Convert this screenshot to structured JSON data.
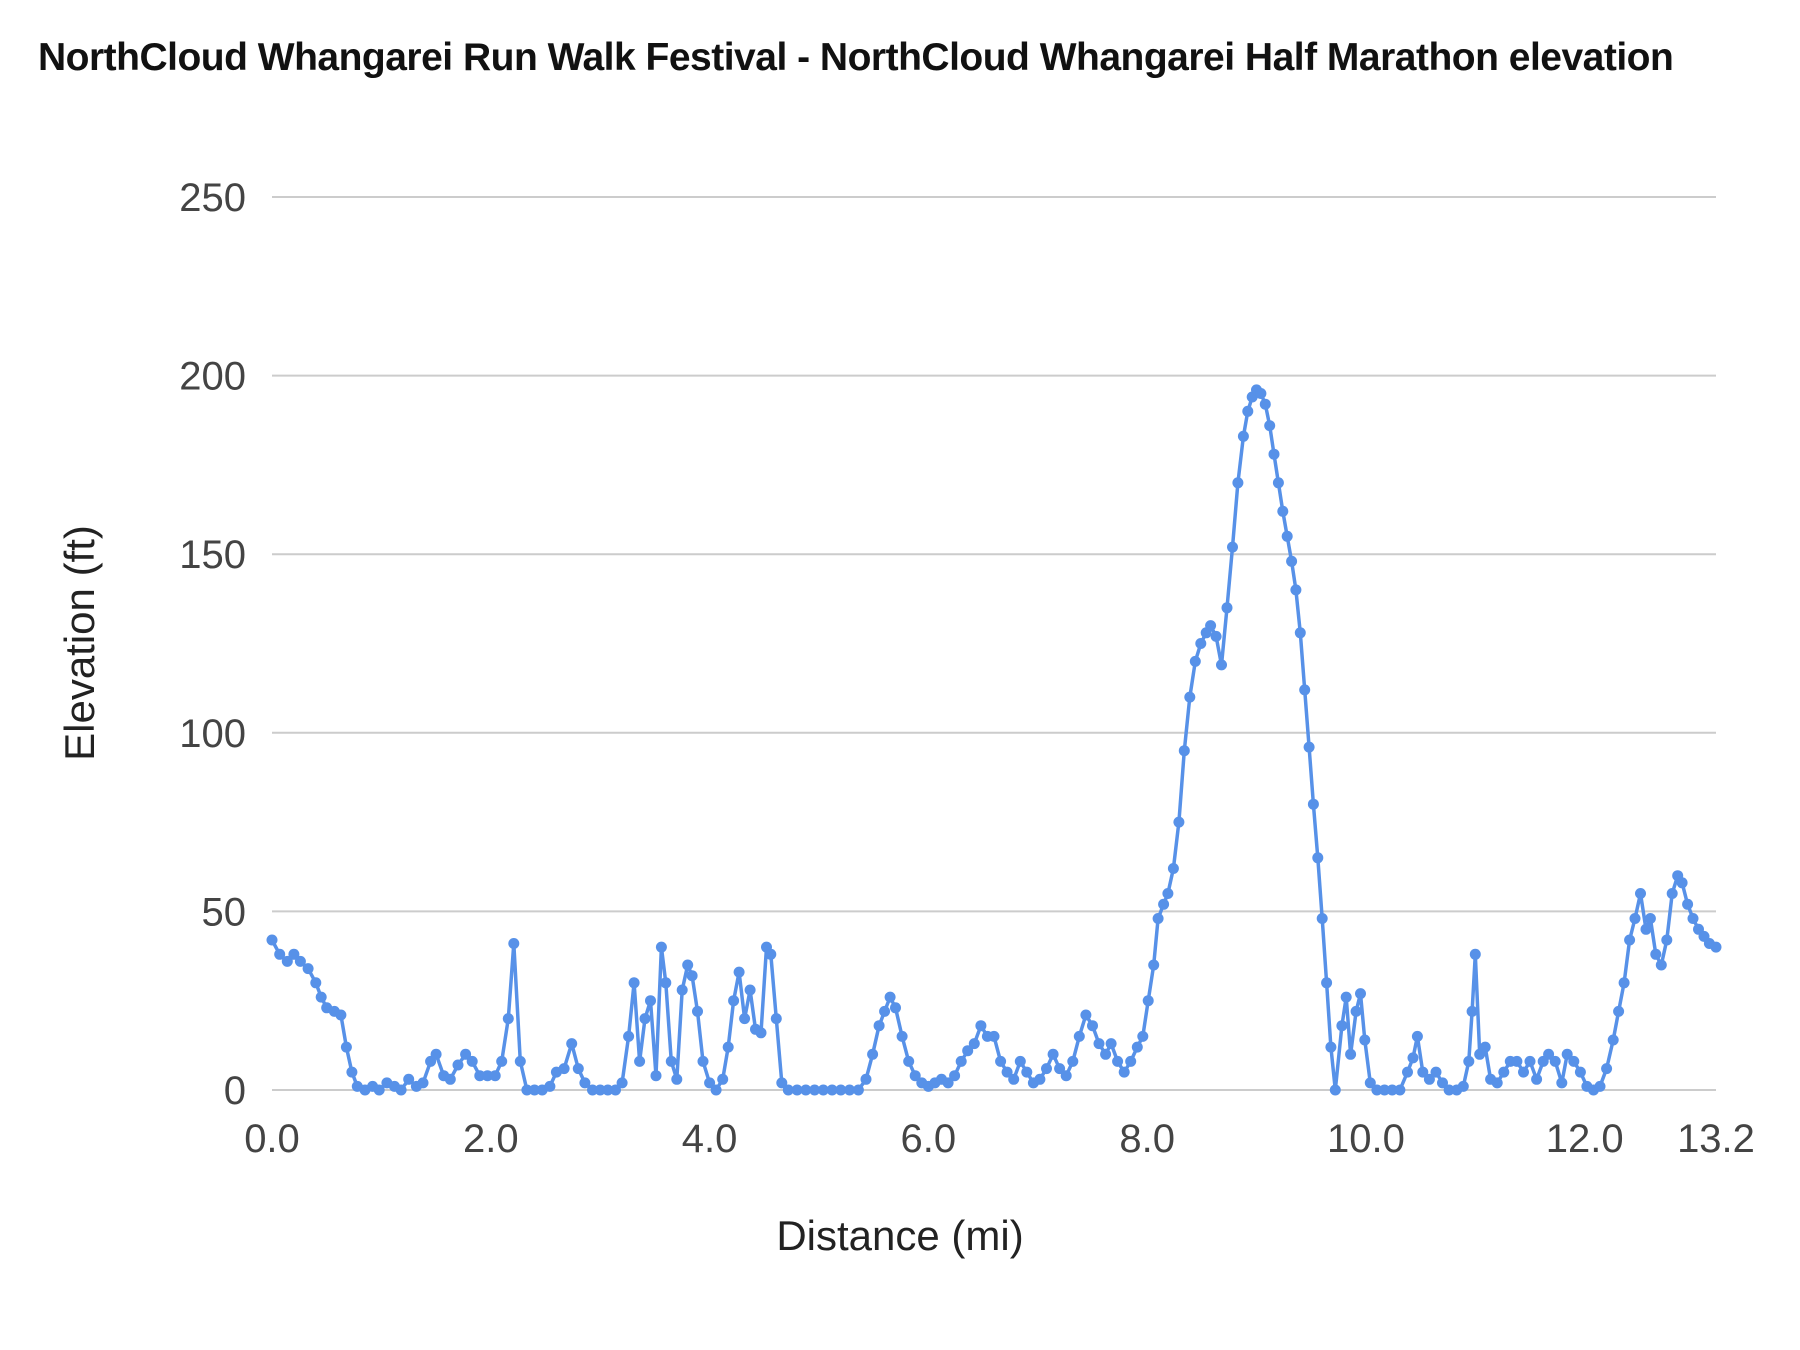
{
  "chart_data": {
    "type": "line",
    "title": "NorthCloud Whangarei Run Walk Festival - NorthCloud Whangarei Half Marathon elevation",
    "xlabel": "Distance (mi)",
    "ylabel": "Elevation (ft)",
    "xlim": [
      0,
      13.2
    ],
    "ylim": [
      0,
      250
    ],
    "grid": true,
    "legend_position": "none",
    "x_ticks": [
      {
        "value": 0,
        "label": "0.0"
      },
      {
        "value": 2,
        "label": "2.0"
      },
      {
        "value": 4,
        "label": "4.0"
      },
      {
        "value": 6,
        "label": "6.0"
      },
      {
        "value": 8,
        "label": "8.0"
      },
      {
        "value": 10,
        "label": "10.0"
      },
      {
        "value": 12,
        "label": "12.0"
      },
      {
        "value": 13.2,
        "label": "13.2"
      }
    ],
    "y_ticks": [
      {
        "value": 0,
        "label": "0"
      },
      {
        "value": 50,
        "label": "50"
      },
      {
        "value": 100,
        "label": "100"
      },
      {
        "value": 150,
        "label": "150"
      },
      {
        "value": 200,
        "label": "200"
      },
      {
        "value": 250,
        "label": "250"
      }
    ],
    "series": [
      {
        "name": "elevation",
        "color": "#5791e8",
        "points": [
          [
            0.0,
            42
          ],
          [
            0.07,
            38
          ],
          [
            0.14,
            36
          ],
          [
            0.2,
            38
          ],
          [
            0.26,
            36
          ],
          [
            0.33,
            34
          ],
          [
            0.4,
            30
          ],
          [
            0.45,
            26
          ],
          [
            0.5,
            23
          ],
          [
            0.57,
            22
          ],
          [
            0.63,
            21
          ],
          [
            0.68,
            12
          ],
          [
            0.73,
            5
          ],
          [
            0.78,
            1
          ],
          [
            0.85,
            0
          ],
          [
            0.92,
            1
          ],
          [
            0.98,
            0
          ],
          [
            1.05,
            2
          ],
          [
            1.12,
            1
          ],
          [
            1.18,
            0
          ],
          [
            1.25,
            3
          ],
          [
            1.32,
            1
          ],
          [
            1.38,
            2
          ],
          [
            1.45,
            8
          ],
          [
            1.5,
            10
          ],
          [
            1.57,
            4
          ],
          [
            1.63,
            3
          ],
          [
            1.7,
            7
          ],
          [
            1.77,
            10
          ],
          [
            1.83,
            8
          ],
          [
            1.9,
            4
          ],
          [
            1.97,
            4
          ],
          [
            2.04,
            4
          ],
          [
            2.1,
            8
          ],
          [
            2.16,
            20
          ],
          [
            2.21,
            41
          ],
          [
            2.27,
            8
          ],
          [
            2.33,
            0
          ],
          [
            2.4,
            0
          ],
          [
            2.47,
            0
          ],
          [
            2.54,
            1
          ],
          [
            2.6,
            5
          ],
          [
            2.67,
            6
          ],
          [
            2.74,
            13
          ],
          [
            2.8,
            6
          ],
          [
            2.86,
            2
          ],
          [
            2.93,
            0
          ],
          [
            3.0,
            0
          ],
          [
            3.07,
            0
          ],
          [
            3.14,
            0
          ],
          [
            3.2,
            2
          ],
          [
            3.26,
            15
          ],
          [
            3.31,
            30
          ],
          [
            3.36,
            8
          ],
          [
            3.41,
            20
          ],
          [
            3.46,
            25
          ],
          [
            3.51,
            4
          ],
          [
            3.56,
            40
          ],
          [
            3.6,
            30
          ],
          [
            3.65,
            8
          ],
          [
            3.7,
            3
          ],
          [
            3.75,
            28
          ],
          [
            3.8,
            35
          ],
          [
            3.84,
            32
          ],
          [
            3.89,
            22
          ],
          [
            3.94,
            8
          ],
          [
            4.0,
            2
          ],
          [
            4.06,
            0
          ],
          [
            4.12,
            3
          ],
          [
            4.17,
            12
          ],
          [
            4.22,
            25
          ],
          [
            4.27,
            33
          ],
          [
            4.32,
            20
          ],
          [
            4.37,
            28
          ],
          [
            4.42,
            17
          ],
          [
            4.47,
            16
          ],
          [
            4.52,
            40
          ],
          [
            4.56,
            38
          ],
          [
            4.61,
            20
          ],
          [
            4.66,
            2
          ],
          [
            4.72,
            0
          ],
          [
            4.8,
            0
          ],
          [
            4.88,
            0
          ],
          [
            4.96,
            0
          ],
          [
            5.04,
            0
          ],
          [
            5.12,
            0
          ],
          [
            5.2,
            0
          ],
          [
            5.28,
            0
          ],
          [
            5.36,
            0
          ],
          [
            5.43,
            3
          ],
          [
            5.49,
            10
          ],
          [
            5.55,
            18
          ],
          [
            5.6,
            22
          ],
          [
            5.65,
            26
          ],
          [
            5.7,
            23
          ],
          [
            5.76,
            15
          ],
          [
            5.82,
            8
          ],
          [
            5.88,
            4
          ],
          [
            5.94,
            2
          ],
          [
            6.0,
            1
          ],
          [
            6.06,
            2
          ],
          [
            6.12,
            3
          ],
          [
            6.18,
            2
          ],
          [
            6.24,
            4
          ],
          [
            6.3,
            8
          ],
          [
            6.36,
            11
          ],
          [
            6.42,
            13
          ],
          [
            6.48,
            18
          ],
          [
            6.54,
            15
          ],
          [
            6.6,
            15
          ],
          [
            6.66,
            8
          ],
          [
            6.72,
            5
          ],
          [
            6.78,
            3
          ],
          [
            6.84,
            8
          ],
          [
            6.9,
            5
          ],
          [
            6.96,
            2
          ],
          [
            7.02,
            3
          ],
          [
            7.08,
            6
          ],
          [
            7.14,
            10
          ],
          [
            7.2,
            6
          ],
          [
            7.26,
            4
          ],
          [
            7.32,
            8
          ],
          [
            7.38,
            15
          ],
          [
            7.44,
            21
          ],
          [
            7.5,
            18
          ],
          [
            7.56,
            13
          ],
          [
            7.62,
            10
          ],
          [
            7.67,
            13
          ],
          [
            7.73,
            8
          ],
          [
            7.79,
            5
          ],
          [
            7.85,
            8
          ],
          [
            7.91,
            12
          ],
          [
            7.96,
            15
          ],
          [
            8.01,
            25
          ],
          [
            8.06,
            35
          ],
          [
            8.1,
            48
          ],
          [
            8.15,
            52
          ],
          [
            8.19,
            55
          ],
          [
            8.24,
            62
          ],
          [
            8.29,
            75
          ],
          [
            8.34,
            95
          ],
          [
            8.39,
            110
          ],
          [
            8.44,
            120
          ],
          [
            8.49,
            125
          ],
          [
            8.54,
            128
          ],
          [
            8.58,
            130
          ],
          [
            8.63,
            127
          ],
          [
            8.68,
            119
          ],
          [
            8.73,
            135
          ],
          [
            8.78,
            152
          ],
          [
            8.83,
            170
          ],
          [
            8.88,
            183
          ],
          [
            8.92,
            190
          ],
          [
            8.96,
            194
          ],
          [
            9.0,
            196
          ],
          [
            9.04,
            195
          ],
          [
            9.08,
            192
          ],
          [
            9.12,
            186
          ],
          [
            9.16,
            178
          ],
          [
            9.2,
            170
          ],
          [
            9.24,
            162
          ],
          [
            9.28,
            155
          ],
          [
            9.32,
            148
          ],
          [
            9.36,
            140
          ],
          [
            9.4,
            128
          ],
          [
            9.44,
            112
          ],
          [
            9.48,
            96
          ],
          [
            9.52,
            80
          ],
          [
            9.56,
            65
          ],
          [
            9.6,
            48
          ],
          [
            9.64,
            30
          ],
          [
            9.68,
            12
          ],
          [
            9.72,
            0
          ],
          [
            9.78,
            18
          ],
          [
            9.82,
            26
          ],
          [
            9.86,
            10
          ],
          [
            9.91,
            22
          ],
          [
            9.95,
            27
          ],
          [
            9.99,
            14
          ],
          [
            10.04,
            2
          ],
          [
            10.1,
            0
          ],
          [
            10.17,
            0
          ],
          [
            10.24,
            0
          ],
          [
            10.31,
            0
          ],
          [
            10.38,
            5
          ],
          [
            10.43,
            9
          ],
          [
            10.47,
            15
          ],
          [
            10.52,
            5
          ],
          [
            10.58,
            3
          ],
          [
            10.64,
            5
          ],
          [
            10.7,
            2
          ],
          [
            10.76,
            0
          ],
          [
            10.83,
            0
          ],
          [
            10.89,
            1
          ],
          [
            10.94,
            8
          ],
          [
            10.97,
            22
          ],
          [
            11.0,
            38
          ],
          [
            11.04,
            10
          ],
          [
            11.09,
            12
          ],
          [
            11.14,
            3
          ],
          [
            11.2,
            2
          ],
          [
            11.26,
            5
          ],
          [
            11.32,
            8
          ],
          [
            11.38,
            8
          ],
          [
            11.44,
            5
          ],
          [
            11.5,
            8
          ],
          [
            11.56,
            3
          ],
          [
            11.62,
            8
          ],
          [
            11.67,
            10
          ],
          [
            11.73,
            8
          ],
          [
            11.79,
            2
          ],
          [
            11.84,
            10
          ],
          [
            11.9,
            8
          ],
          [
            11.96,
            5
          ],
          [
            12.02,
            1
          ],
          [
            12.08,
            0
          ],
          [
            12.14,
            1
          ],
          [
            12.2,
            6
          ],
          [
            12.26,
            14
          ],
          [
            12.31,
            22
          ],
          [
            12.36,
            30
          ],
          [
            12.41,
            42
          ],
          [
            12.46,
            48
          ],
          [
            12.51,
            55
          ],
          [
            12.56,
            45
          ],
          [
            12.6,
            48
          ],
          [
            12.65,
            38
          ],
          [
            12.7,
            35
          ],
          [
            12.75,
            42
          ],
          [
            12.8,
            55
          ],
          [
            12.85,
            60
          ],
          [
            12.89,
            58
          ],
          [
            12.94,
            52
          ],
          [
            12.99,
            48
          ],
          [
            13.04,
            45
          ],
          [
            13.09,
            43
          ],
          [
            13.14,
            41
          ],
          [
            13.2,
            40
          ]
        ]
      }
    ]
  },
  "style": {
    "background": "#ffffff",
    "grid_color": "#cccccc",
    "tick_label_color": "#444444",
    "title_color": "#111111",
    "axis_title_color": "#222222",
    "line_color": "#5791e8"
  }
}
